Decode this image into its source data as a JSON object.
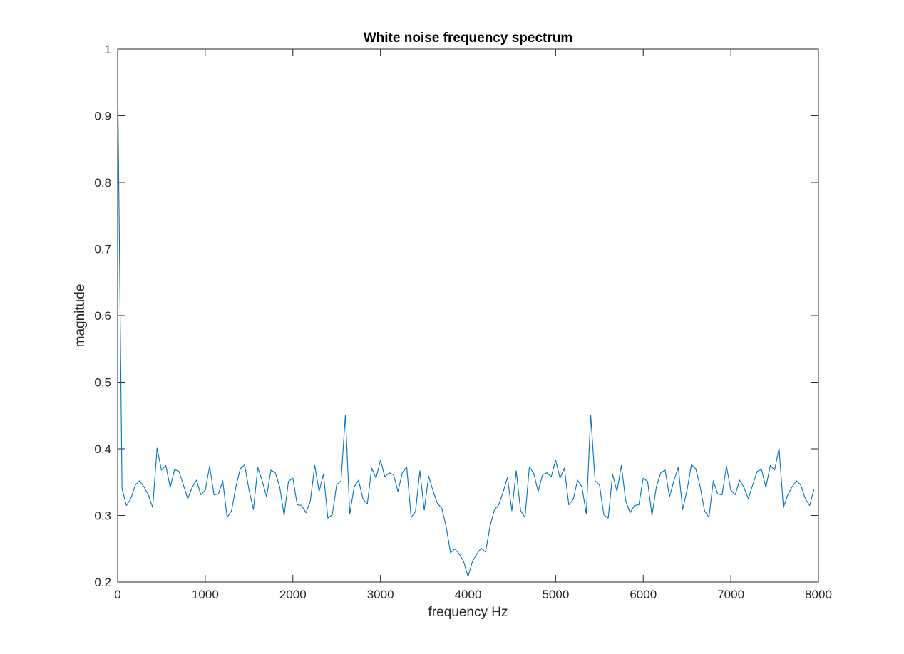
{
  "chart_data": {
    "type": "line",
    "title": "White noise frequency spectrum",
    "xlabel": "frequency Hz",
    "ylabel": "magnitude",
    "xlim": [
      0,
      8000
    ],
    "ylim": [
      0.2,
      1
    ],
    "xticks": [
      "0",
      "1000",
      "2000",
      "3000",
      "4000",
      "5000",
      "6000",
      "7000",
      "8000"
    ],
    "yticks": [
      "0.2",
      "0.3",
      "0.4",
      "0.5",
      "0.6",
      "0.7",
      "0.8",
      "0.9",
      "1"
    ],
    "grid": false,
    "line_color": "#0072BD",
    "series": [
      {
        "x": [
          0,
          50,
          100,
          150,
          200,
          250,
          300,
          350,
          400,
          450,
          500,
          550,
          600,
          650,
          700,
          750,
          800,
          850,
          900,
          950,
          1000,
          1050,
          1100,
          1150,
          1200,
          1250,
          1300,
          1350,
          1400,
          1450,
          1500,
          1550,
          1600,
          1650,
          1700,
          1750,
          1800,
          1850,
          1900,
          1950,
          2000,
          2050,
          2100,
          2150,
          2200,
          2250,
          2300,
          2350,
          2400,
          2450,
          2500,
          2550,
          2600,
          2650,
          2700,
          2750,
          2800,
          2850,
          2900,
          2950,
          3000,
          3050,
          3100,
          3150,
          3200,
          3250,
          3300,
          3350,
          3400,
          3450,
          3500,
          3550,
          3600,
          3650,
          3700,
          3750,
          3800,
          3850,
          3900,
          3950,
          4000,
          4050,
          4100,
          4150,
          4200,
          4250,
          4300,
          4350,
          4400,
          4450,
          4500,
          4550,
          4600,
          4650,
          4700,
          4750,
          4800,
          4850,
          4900,
          4950,
          5000,
          5050,
          5100,
          5150,
          5200,
          5250,
          5300,
          5350,
          5400,
          5450,
          5500,
          5550,
          5600,
          5650,
          5700,
          5750,
          5800,
          5850,
          5900,
          5950,
          6000,
          6050,
          6100,
          6150,
          6200,
          6250,
          6300,
          6350,
          6400,
          6450,
          6500,
          6550,
          6600,
          6650,
          6700,
          6750,
          6800,
          6850,
          6900,
          6950,
          7000,
          7050,
          7100,
          7150,
          7200,
          7250,
          7300,
          7350,
          7400,
          7450,
          7500,
          7550,
          7600,
          7650,
          7700,
          7750,
          7800,
          7850,
          7900,
          7950
        ],
        "y": [
          0.96,
          0.34,
          0.315,
          0.325,
          0.345,
          0.352,
          0.343,
          0.331,
          0.312,
          0.401,
          0.368,
          0.375,
          0.342,
          0.369,
          0.366,
          0.346,
          0.325,
          0.342,
          0.353,
          0.331,
          0.338,
          0.374,
          0.331,
          0.332,
          0.352,
          0.297,
          0.307,
          0.343,
          0.37,
          0.376,
          0.338,
          0.309,
          0.372,
          0.352,
          0.328,
          0.368,
          0.364,
          0.343,
          0.3,
          0.351,
          0.356,
          0.316,
          0.315,
          0.304,
          0.322,
          0.375,
          0.336,
          0.362,
          0.296,
          0.301,
          0.346,
          0.352,
          0.451,
          0.302,
          0.343,
          0.353,
          0.325,
          0.317,
          0.371,
          0.356,
          0.383,
          0.358,
          0.364,
          0.361,
          0.336,
          0.364,
          0.373,
          0.297,
          0.306,
          0.367,
          0.308,
          0.359,
          0.337,
          0.318,
          0.311,
          0.283,
          0.244,
          0.25,
          0.242,
          0.231,
          0.208,
          0.231,
          0.242,
          0.251,
          0.245,
          0.283,
          0.308,
          0.316,
          0.335,
          0.357,
          0.307,
          0.367,
          0.307,
          0.297,
          0.373,
          0.363,
          0.336,
          0.361,
          0.364,
          0.358,
          0.383,
          0.356,
          0.371,
          0.316,
          0.324,
          0.353,
          0.343,
          0.302,
          0.451,
          0.352,
          0.346,
          0.301,
          0.296,
          0.362,
          0.336,
          0.375,
          0.322,
          0.304,
          0.315,
          0.316,
          0.356,
          0.351,
          0.3,
          0.343,
          0.364,
          0.368,
          0.328,
          0.352,
          0.372,
          0.309,
          0.338,
          0.376,
          0.37,
          0.343,
          0.307,
          0.297,
          0.352,
          0.332,
          0.331,
          0.374,
          0.338,
          0.331,
          0.353,
          0.342,
          0.325,
          0.346,
          0.366,
          0.369,
          0.342,
          0.375,
          0.368,
          0.401,
          0.312,
          0.331,
          0.343,
          0.352,
          0.345,
          0.325,
          0.315,
          0.34
        ]
      }
    ]
  }
}
